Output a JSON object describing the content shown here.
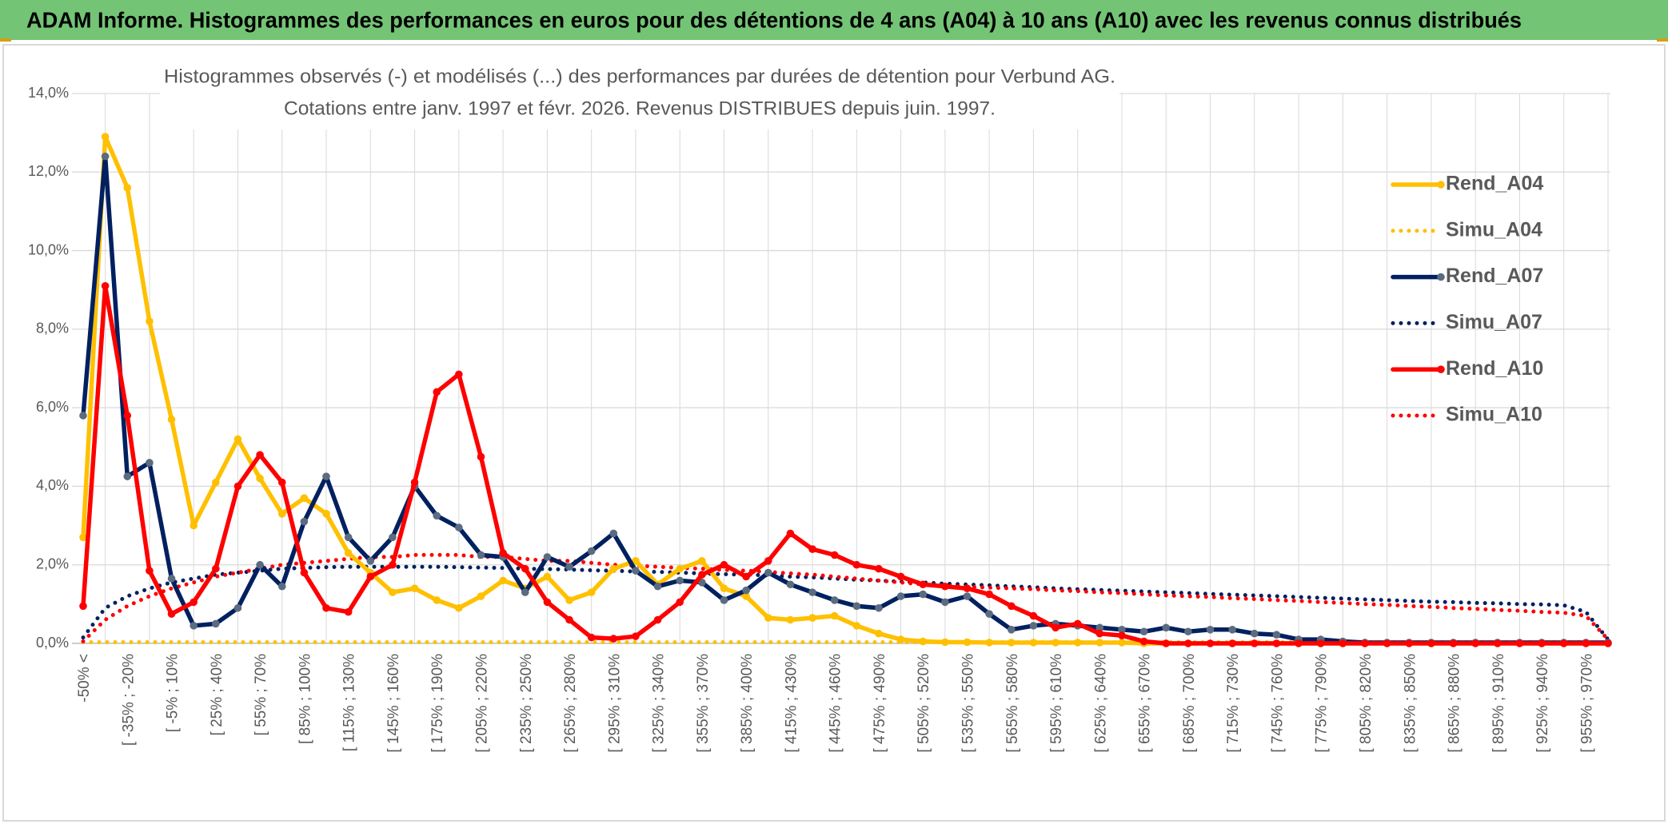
{
  "header": {
    "title": "ADAM Informe. Histogrammes des performances en euros pour des détentions de 4 ans (A04) à 10 ans (A10) avec les revenus connus distribués"
  },
  "chart_data": {
    "type": "line",
    "title": "Histogrammes observés (-) et modélisés (...) des performances par durées de détention pour Verbund AG.",
    "subtitle": "Cotations entre janv. 1997 et févr. 2026. Revenus DISTRIBUES depuis juin. 1997.",
    "categories": [
      "-50% <",
      null,
      "[ -35% ; -20%",
      null,
      "[ -5% ; 10%",
      null,
      "[ 25% ; 40%",
      null,
      "[ 55% ; 70%",
      null,
      "[ 85% ; 100%",
      null,
      "[ 115% ; 130%",
      null,
      "[ 145% ; 160%",
      null,
      "[ 175% ; 190%",
      null,
      "[ 205% ; 220%",
      null,
      "[ 235% ; 250%",
      null,
      "[ 265% ; 280%",
      null,
      "[ 295% ; 310%",
      null,
      "[ 325% ; 340%",
      null,
      "[ 355% ; 370%",
      null,
      "[ 385% ; 400%",
      null,
      "[ 415% ; 430%",
      null,
      "[ 445% ; 460%",
      null,
      "[ 475% ; 490%",
      null,
      "[ 505% ; 520%",
      null,
      "[ 535% ; 550%",
      null,
      "[ 565% ; 580%",
      null,
      "[ 595% ; 610%",
      null,
      "[ 625% ; 640%",
      null,
      "[ 655% ; 670%",
      null,
      "[ 685% ; 700%",
      null,
      "[ 715% ; 730%",
      null,
      "[ 745% ; 760%",
      null,
      "[ 775% ; 790%",
      null,
      "[ 805% ; 820%",
      null,
      "[ 835% ; 850%",
      null,
      "[ 865% ; 880%",
      null,
      "[ 895% ; 910%",
      null,
      "[ 925% ; 940%",
      null,
      "[ 955% ; 970%",
      null
    ],
    "ylim": [
      0,
      14
    ],
    "yticks": [
      {
        "value": 0,
        "label": "0,0%"
      },
      {
        "value": 2,
        "label": "2,0%"
      },
      {
        "value": 4,
        "label": "4,0%"
      },
      {
        "value": 6,
        "label": "6,0%"
      },
      {
        "value": 8,
        "label": "8,0%"
      },
      {
        "value": 10,
        "label": "10,0%"
      },
      {
        "value": 12,
        "label": "12,0%"
      },
      {
        "value": 14,
        "label": "14,0%"
      }
    ],
    "grid": true,
    "legend": "right",
    "series": [
      {
        "name": "Simu_A04",
        "color": "#ffc000",
        "line_style": "dotted",
        "values": [
          0.03,
          0.03,
          0.03,
          0.03,
          0.03,
          0.03,
          0.03,
          0.03,
          0.03,
          0.03,
          0.03,
          0.03,
          0.03,
          0.03,
          0.03,
          0.03,
          0.03,
          0.03,
          0.03,
          0.03,
          0.03,
          0.03,
          0.03,
          0.03,
          0.03,
          0.03,
          0.03,
          0.03,
          0.03,
          0.03,
          0.03,
          0.03,
          0.03,
          0.03,
          0.03,
          0.03,
          0.03,
          0.03,
          0.03,
          0.03,
          0.03,
          0.03,
          0.03,
          0.03,
          0.03,
          0.03,
          0.03,
          0.03,
          0.03,
          0.03,
          0.03,
          0.03,
          0.03,
          0.03,
          0.03,
          0.03,
          0.03,
          0.03,
          0.03,
          0.03,
          0.03,
          0.03,
          0.03,
          0.03,
          0.03,
          0.03,
          0.03,
          0.03,
          0.03,
          0
        ]
      },
      {
        "name": "Simu_A07",
        "color": "#002060",
        "line_style": "dotted",
        "values": [
          0.15,
          0.9,
          1.2,
          1.4,
          1.55,
          1.65,
          1.75,
          1.8,
          1.85,
          1.9,
          1.92,
          1.94,
          1.95,
          1.95,
          1.95,
          1.95,
          1.95,
          1.94,
          1.93,
          1.92,
          1.9,
          1.89,
          1.88,
          1.86,
          1.85,
          1.83,
          1.82,
          1.8,
          1.78,
          1.76,
          1.75,
          1.73,
          1.7,
          1.68,
          1.65,
          1.62,
          1.6,
          1.57,
          1.55,
          1.52,
          1.5,
          1.48,
          1.45,
          1.43,
          1.4,
          1.38,
          1.36,
          1.34,
          1.32,
          1.3,
          1.28,
          1.26,
          1.24,
          1.22,
          1.2,
          1.18,
          1.16,
          1.14,
          1.12,
          1.1,
          1.08,
          1.06,
          1.05,
          1.03,
          1.02,
          1.0,
          0.99,
          0.97,
          0.8,
          0.1
        ]
      },
      {
        "name": "Simu_A10",
        "color": "#ff0000",
        "line_style": "dotted",
        "values": [
          0.05,
          0.6,
          0.95,
          1.2,
          1.4,
          1.55,
          1.7,
          1.8,
          1.9,
          2.0,
          2.05,
          2.1,
          2.15,
          2.2,
          2.2,
          2.25,
          2.25,
          2.25,
          2.2,
          2.2,
          2.15,
          2.1,
          2.1,
          2.05,
          2.0,
          1.98,
          1.95,
          1.92,
          1.9,
          1.87,
          1.85,
          1.82,
          1.78,
          1.75,
          1.7,
          1.65,
          1.6,
          1.55,
          1.5,
          1.47,
          1.44,
          1.42,
          1.4,
          1.38,
          1.35,
          1.33,
          1.3,
          1.28,
          1.25,
          1.22,
          1.2,
          1.18,
          1.15,
          1.13,
          1.1,
          1.08,
          1.05,
          1.03,
          1.0,
          0.98,
          0.95,
          0.93,
          0.9,
          0.88,
          0.85,
          0.83,
          0.8,
          0.78,
          0.7,
          0.1
        ]
      },
      {
        "name": "Rend_A04",
        "color": "#ffc000",
        "line_style": "solid",
        "marker_color": "#ffc000",
        "values": [
          2.7,
          12.9,
          11.6,
          8.2,
          5.7,
          3.0,
          4.1,
          5.2,
          4.2,
          3.3,
          3.7,
          3.3,
          2.3,
          1.8,
          1.3,
          1.4,
          1.1,
          0.9,
          1.2,
          1.6,
          1.4,
          1.7,
          1.1,
          1.3,
          1.9,
          2.1,
          1.5,
          1.9,
          2.1,
          1.4,
          1.2,
          0.65,
          0.6,
          0.65,
          0.7,
          0.45,
          0.25,
          0.1,
          0.05,
          0.03,
          0.03,
          0.02,
          0.02,
          0.02,
          0.02,
          0.02,
          0.02,
          0.02,
          0,
          0,
          0,
          0,
          0,
          0,
          0,
          0,
          0,
          0,
          0,
          0,
          0,
          0,
          0,
          0,
          0,
          0,
          0,
          0,
          0,
          0
        ]
      },
      {
        "name": "Rend_A07",
        "color": "#002060",
        "line_style": "solid",
        "marker_color": "#5b6b80",
        "values": [
          5.8,
          12.4,
          4.25,
          4.6,
          1.65,
          0.45,
          0.5,
          0.9,
          2.0,
          1.45,
          3.1,
          4.25,
          2.7,
          2.1,
          2.7,
          4.0,
          3.25,
          2.95,
          2.25,
          2.2,
          1.3,
          2.2,
          1.95,
          2.35,
          2.8,
          1.85,
          1.45,
          1.6,
          1.55,
          1.1,
          1.35,
          1.8,
          1.5,
          1.3,
          1.1,
          0.95,
          0.9,
          1.2,
          1.25,
          1.05,
          1.2,
          0.75,
          0.35,
          0.45,
          0.5,
          0.45,
          0.4,
          0.35,
          0.3,
          0.4,
          0.3,
          0.35,
          0.35,
          0.25,
          0.22,
          0.1,
          0.1,
          0.05,
          0.02,
          0.02,
          0.02,
          0.02,
          0.02,
          0.02,
          0.02,
          0.02,
          0.02,
          0.02,
          0.02,
          0.02
        ]
      },
      {
        "name": "Rend_A10",
        "color": "#ff0000",
        "line_style": "solid",
        "marker_color": "#ff0000",
        "values": [
          0.95,
          9.1,
          5.8,
          1.85,
          0.75,
          1.05,
          1.9,
          4.0,
          4.8,
          4.1,
          1.8,
          0.9,
          0.8,
          1.7,
          2.0,
          4.1,
          6.4,
          6.85,
          4.75,
          2.3,
          1.9,
          1.05,
          0.6,
          0.15,
          0.12,
          0.18,
          0.6,
          1.05,
          1.75,
          2.0,
          1.7,
          2.1,
          2.8,
          2.4,
          2.25,
          2.0,
          1.9,
          1.7,
          1.5,
          1.45,
          1.4,
          1.25,
          0.95,
          0.7,
          0.4,
          0.5,
          0.25,
          0.2,
          0.05,
          0,
          0,
          0,
          0,
          0,
          0,
          0,
          0,
          0,
          0,
          0,
          0,
          0,
          0,
          0,
          0,
          0,
          0,
          0,
          0,
          0
        ]
      }
    ],
    "legend_order": [
      3,
      0,
      4,
      1,
      5,
      2
    ]
  }
}
